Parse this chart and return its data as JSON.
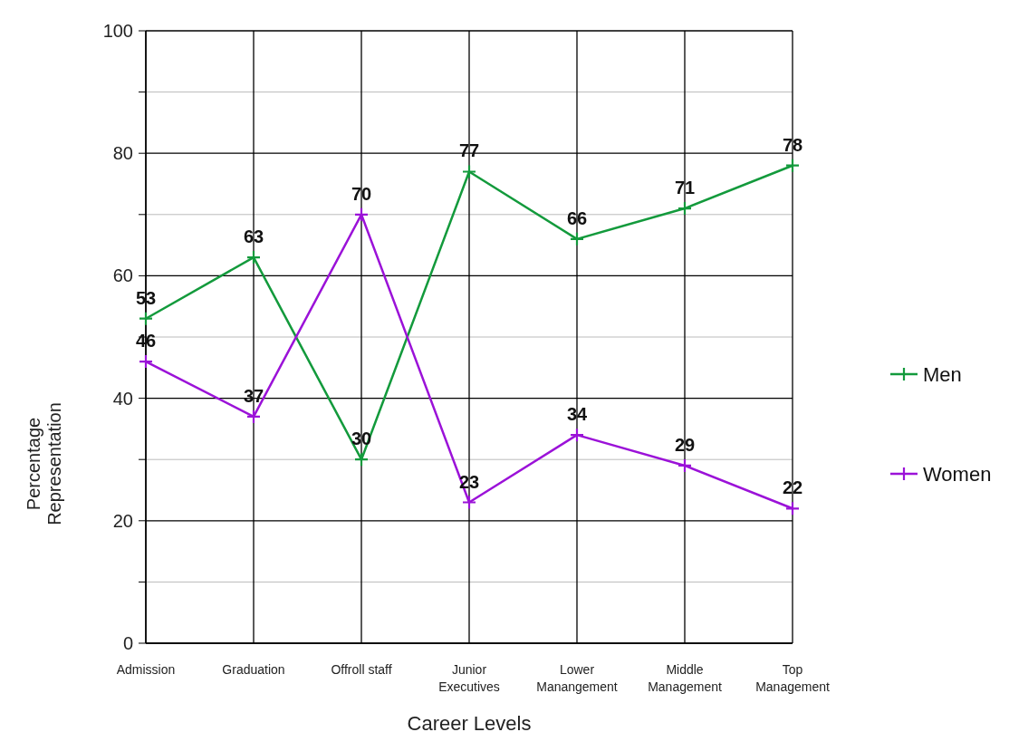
{
  "chart_data": {
    "type": "line",
    "xlabel": "Career Levels",
    "ylabel": "Percentage Representation",
    "categories": [
      "Admission",
      "Graduation",
      "Offroll staff",
      "Junior Executives",
      "Lower Manangement",
      "Middle Management",
      "Top Management"
    ],
    "series": [
      {
        "name": "Men",
        "color": "#139a3c",
        "values": [
          53,
          63,
          30,
          77,
          66,
          71,
          78
        ]
      },
      {
        "name": "Women",
        "color": "#9b12d8",
        "values": [
          46,
          37,
          70,
          23,
          34,
          29,
          22
        ]
      }
    ],
    "ylim": [
      0,
      100
    ],
    "yticks": [
      0,
      {
        "value": 10,
        "label": null
      },
      20,
      {
        "value": 30,
        "label": null
      },
      40,
      {
        "value": 50,
        "label": null
      },
      60,
      {
        "value": 70,
        "label": null
      },
      80,
      {
        "value": 90,
        "label": null
      },
      100
    ],
    "grid": true,
    "legend": "right",
    "marker": "cross",
    "line_style": "solid",
    "data_labels": true
  }
}
